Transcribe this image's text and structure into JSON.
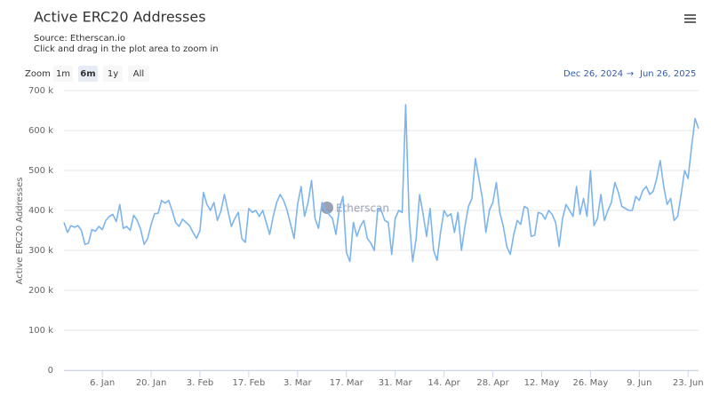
{
  "chart_data": {
    "type": "line",
    "title": "Active ERC20 Addresses",
    "subtitle": [
      "Source: Etherscan.io",
      "Click and drag in the plot area to zoom in"
    ],
    "zoom_label": "Zoom",
    "zoom_buttons": [
      "1m",
      "6m",
      "1y",
      "All"
    ],
    "zoom_selected": "6m",
    "range": {
      "from": "Dec 26, 2024",
      "separator": "→",
      "to": "Jun 26, 2025"
    },
    "watermark": "Etherscan",
    "y_label": "Active ERC20 Addresses",
    "color": "#7cb5ec",
    "grid": true,
    "ylim": [
      0,
      700000
    ],
    "yticks": [
      0,
      {
        "value": 100000,
        "label": "100 k"
      },
      {
        "value": 200000,
        "label": "200 k"
      },
      {
        "value": 300000,
        "label": "300 k"
      },
      {
        "value": 400000,
        "label": "400 k"
      },
      {
        "value": 500000,
        "label": "500 k"
      },
      {
        "value": 600000,
        "label": "600 k"
      },
      {
        "value": 700000,
        "label": "700 k"
      }
    ],
    "categories": [
      null,
      null,
      null,
      null,
      null,
      null,
      null,
      null,
      null,
      null,
      null,
      "6. Jan",
      null,
      null,
      null,
      null,
      null,
      null,
      null,
      null,
      null,
      null,
      null,
      null,
      null,
      "20. Jan",
      null,
      null,
      null,
      null,
      null,
      null,
      null,
      null,
      null,
      null,
      null,
      null,
      null,
      "3. Feb",
      null,
      null,
      null,
      null,
      null,
      null,
      null,
      null,
      null,
      null,
      null,
      null,
      null,
      "17. Feb",
      null,
      null,
      null,
      null,
      null,
      null,
      null,
      null,
      null,
      null,
      null,
      null,
      null,
      "3. Mar",
      null,
      null,
      null,
      null,
      null,
      null,
      null,
      null,
      null,
      null,
      null,
      null,
      null,
      "17. Mar",
      null,
      null,
      null,
      null,
      null,
      null,
      null,
      null,
      null,
      null,
      null,
      null,
      null,
      "31. Mar",
      null,
      null,
      null,
      null,
      null,
      null,
      null,
      null,
      null,
      null,
      null,
      null,
      null,
      "14. Apr",
      null,
      null,
      null,
      null,
      null,
      null,
      null,
      null,
      null,
      null,
      null,
      null,
      null,
      "28. Apr",
      null,
      null,
      null,
      null,
      null,
      null,
      null,
      null,
      null,
      null,
      null,
      null,
      null,
      "12. May",
      null,
      null,
      null,
      null,
      null,
      null,
      null,
      null,
      null,
      null,
      null,
      null,
      null,
      "26. May",
      null,
      null,
      null,
      null,
      null,
      null,
      null,
      null,
      null,
      null,
      null,
      null,
      null,
      "9. Jun",
      null,
      null,
      null,
      null,
      null,
      null,
      null,
      null,
      null,
      null,
      null,
      null,
      null,
      "23. Jun",
      null,
      null,
      null
    ],
    "values": [
      370000,
      345000,
      362000,
      358000,
      362000,
      350000,
      315000,
      318000,
      352000,
      348000,
      360000,
      352000,
      375000,
      385000,
      390000,
      372000,
      415000,
      355000,
      360000,
      350000,
      388000,
      375000,
      352000,
      315000,
      330000,
      365000,
      392000,
      393000,
      425000,
      418000,
      425000,
      400000,
      370000,
      360000,
      378000,
      370000,
      362000,
      345000,
      330000,
      350000,
      445000,
      415000,
      400000,
      420000,
      375000,
      398000,
      440000,
      400000,
      360000,
      380000,
      395000,
      330000,
      320000,
      405000,
      395000,
      400000,
      385000,
      400000,
      370000,
      340000,
      385000,
      420000,
      440000,
      425000,
      400000,
      365000,
      330000,
      415000,
      460000,
      385000,
      420000,
      475000,
      380000,
      355000,
      420000,
      400000,
      390000,
      380000,
      340000,
      405000,
      435000,
      295000,
      272000,
      370000,
      335000,
      360000,
      375000,
      330000,
      318000,
      300000,
      405000,
      400000,
      375000,
      370000,
      290000,
      380000,
      400000,
      395000,
      665000,
      380000,
      272000,
      330000,
      440000,
      390000,
      335000,
      405000,
      300000,
      275000,
      345000,
      400000,
      385000,
      392000,
      345000,
      395000,
      300000,
      360000,
      410000,
      430000,
      530000,
      480000,
      430000,
      345000,
      400000,
      420000,
      470000,
      395000,
      360000,
      310000,
      290000,
      340000,
      375000,
      365000,
      410000,
      405000,
      335000,
      338000,
      395000,
      392000,
      378000,
      400000,
      390000,
      370000,
      310000,
      380000,
      415000,
      400000,
      385000,
      460000,
      390000,
      430000,
      385000,
      500000,
      362000,
      380000,
      440000,
      375000,
      400000,
      420000,
      470000,
      445000,
      410000,
      405000,
      400000,
      400000,
      435000,
      425000,
      450000,
      460000,
      440000,
      448000,
      480000,
      525000,
      460000,
      415000,
      430000,
      375000,
      385000,
      440000,
      500000,
      480000,
      560000,
      630000,
      605000
    ]
  }
}
